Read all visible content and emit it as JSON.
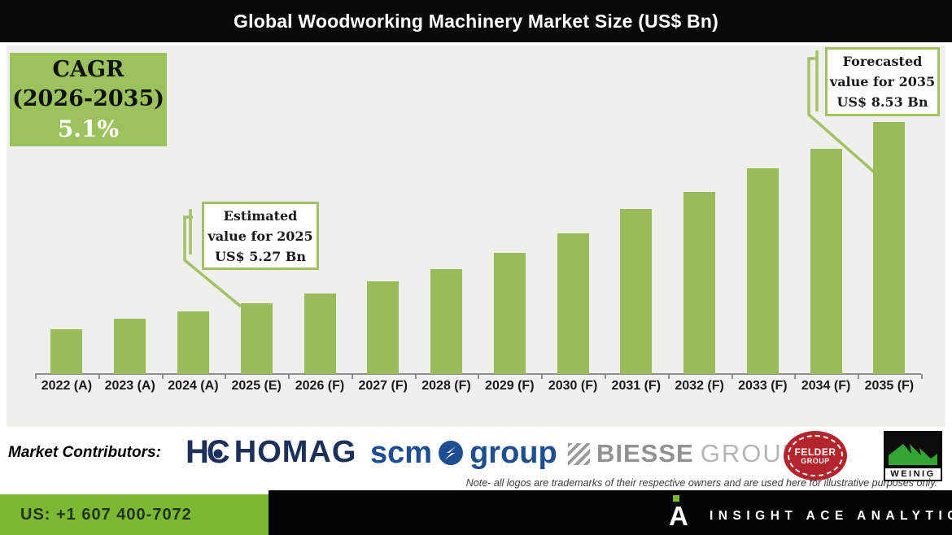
{
  "header": {
    "title": "Global Woodworking Machinery Market Size (US$ Bn)"
  },
  "cagr_box": {
    "line1": "CAGR",
    "line2": "(2026-2035)",
    "line3": "5.1%"
  },
  "callouts": {
    "estimated": {
      "lines": [
        "Estimated",
        "value for 2025",
        "US$ 5.27 Bn"
      ]
    },
    "forecasted": {
      "lines": [
        "Forecasted",
        "value for 2035",
        "US$ 8.53 Bn"
      ]
    }
  },
  "chart_data": {
    "type": "bar",
    "title": "Global Woodworking Machinery Market Size (US$ Bn)",
    "unit": "US$ Bn",
    "categories": [
      "2022 (A)",
      "2023 (A)",
      "2024 (A)",
      "2025 (E)",
      "2026 (F)",
      "2027 (F)",
      "2028 (F)",
      "2029 (F)",
      "2030 (F)",
      "2031 (F)",
      "2032 (F)",
      "2033 (F)",
      "2034 (F)",
      "2035 (F)"
    ],
    "values": [
      4.81,
      4.99,
      5.12,
      5.27,
      5.44,
      5.66,
      5.88,
      6.17,
      6.53,
      6.96,
      7.27,
      7.69,
      8.04,
      8.53
    ],
    "labeled_values": {
      "2025 (E)": 5.27,
      "2035 (F)": 8.53
    },
    "values_note": "Only 2025 (5.27) and 2035 (8.53) are printed on the chart; remaining values estimated from bar heights",
    "cagr": {
      "period": "2026-2035",
      "value_pct": 5.1
    },
    "bar_color": "#99bb59",
    "xlabel": "",
    "ylabel": "US$ Bn",
    "y_axis_ticks_visible": false,
    "grid": false,
    "legend": "none",
    "annotations": [
      {
        "target": "2025 (E)",
        "text": "Estimated value for 2025 US$ 5.27 Bn"
      },
      {
        "target": "2035 (F)",
        "text": "Forecasted value for 2035 US$ 8.53 Bn"
      },
      {
        "target": "2026-2035",
        "text": "CAGR (2026-2035) 5.1%"
      }
    ]
  },
  "contributors": {
    "label": "Market Contributors:",
    "homag": {
      "name": "HOMAG",
      "mark_h": "H",
      "mark_c": "C",
      "text": "HOMAG"
    },
    "scm": {
      "name": "scm group",
      "left": "scm",
      "right": "group"
    },
    "biesse": {
      "name": "BIESSE GROUP",
      "bold": "BIESSE",
      "light": "GROUP"
    },
    "felder": {
      "name": "FELDER GROUP",
      "line1": "FELDER",
      "line2": "GROUP"
    },
    "weinig": {
      "name": "WEINIG",
      "text": "WEINIG"
    }
  },
  "note": {
    "text": "Note- all logos are trademarks of their respective owners and are used here for illustrative purposes only."
  },
  "footer": {
    "phone": "US: +1 607 400-7072",
    "brand": "INSIGHT ACE ANALYTIC"
  },
  "colors": {
    "title_bg": "#0a0a0a",
    "panel_bg": "#efefec",
    "bar": "#99bb59",
    "accent": "#a3c168",
    "cagr_bg": "#9cc25e",
    "footer_green": "#7cb933",
    "homag_navy": "#1c3059",
    "scm_blue": "#1d4e91",
    "biesse_gray": "#8f9193",
    "biesse_light": "#b3b5b7",
    "felder_red": "#b3242c",
    "weinig_green": "#33a532"
  }
}
